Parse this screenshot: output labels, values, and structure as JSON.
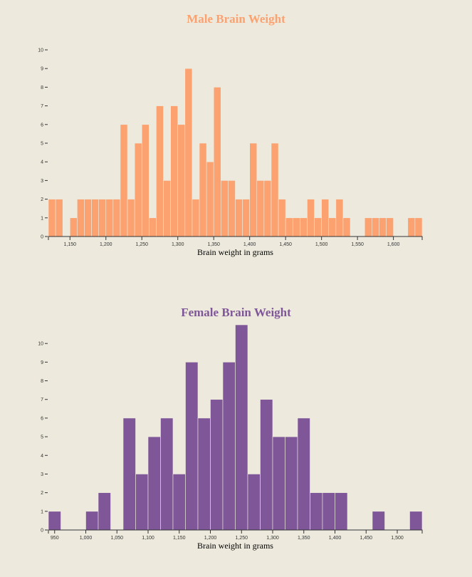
{
  "colors": {
    "background": "#edeadd",
    "male": "#fca170",
    "female": "#7f5799"
  },
  "chart_data": [
    {
      "type": "bar",
      "title": "Male Brain Weight",
      "xlabel": "Brain weight in grams",
      "ylabel": "",
      "color": "#fca170",
      "bin_width": 10,
      "x_domain": [
        1120,
        1640
      ],
      "ylim": [
        0,
        10
      ],
      "y_ticks": [
        0,
        1,
        2,
        3,
        4,
        5,
        6,
        7,
        8,
        9,
        10
      ],
      "x_ticks": [
        1150,
        1200,
        1250,
        1300,
        1350,
        1400,
        1450,
        1500,
        1550,
        1600
      ],
      "x_tick_labels": [
        "1,150",
        "1,200",
        "1,250",
        "1,300",
        "1,350",
        "1,400",
        "1,450",
        "1,500",
        "1,550",
        "1,600"
      ],
      "bins": [
        {
          "x0": 1120,
          "value": 2
        },
        {
          "x0": 1130,
          "value": 2
        },
        {
          "x0": 1140,
          "value": 0
        },
        {
          "x0": 1150,
          "value": 1
        },
        {
          "x0": 1160,
          "value": 2
        },
        {
          "x0": 1170,
          "value": 2
        },
        {
          "x0": 1180,
          "value": 2
        },
        {
          "x0": 1190,
          "value": 2
        },
        {
          "x0": 1200,
          "value": 2
        },
        {
          "x0": 1210,
          "value": 2
        },
        {
          "x0": 1220,
          "value": 6
        },
        {
          "x0": 1230,
          "value": 2
        },
        {
          "x0": 1240,
          "value": 5
        },
        {
          "x0": 1250,
          "value": 6
        },
        {
          "x0": 1260,
          "value": 1
        },
        {
          "x0": 1270,
          "value": 7
        },
        {
          "x0": 1280,
          "value": 3
        },
        {
          "x0": 1290,
          "value": 7
        },
        {
          "x0": 1300,
          "value": 6
        },
        {
          "x0": 1310,
          "value": 9
        },
        {
          "x0": 1320,
          "value": 2
        },
        {
          "x0": 1330,
          "value": 5
        },
        {
          "x0": 1340,
          "value": 4
        },
        {
          "x0": 1350,
          "value": 8
        },
        {
          "x0": 1360,
          "value": 3
        },
        {
          "x0": 1370,
          "value": 3
        },
        {
          "x0": 1380,
          "value": 2
        },
        {
          "x0": 1390,
          "value": 2
        },
        {
          "x0": 1400,
          "value": 5
        },
        {
          "x0": 1410,
          "value": 3
        },
        {
          "x0": 1420,
          "value": 3
        },
        {
          "x0": 1430,
          "value": 5
        },
        {
          "x0": 1440,
          "value": 2
        },
        {
          "x0": 1450,
          "value": 1
        },
        {
          "x0": 1460,
          "value": 1
        },
        {
          "x0": 1470,
          "value": 1
        },
        {
          "x0": 1480,
          "value": 2
        },
        {
          "x0": 1490,
          "value": 1
        },
        {
          "x0": 1500,
          "value": 2
        },
        {
          "x0": 1510,
          "value": 1
        },
        {
          "x0": 1520,
          "value": 2
        },
        {
          "x0": 1530,
          "value": 1
        },
        {
          "x0": 1540,
          "value": 0
        },
        {
          "x0": 1550,
          "value": 0
        },
        {
          "x0": 1560,
          "value": 1
        },
        {
          "x0": 1570,
          "value": 1
        },
        {
          "x0": 1580,
          "value": 1
        },
        {
          "x0": 1590,
          "value": 1
        },
        {
          "x0": 1600,
          "value": 0
        },
        {
          "x0": 1610,
          "value": 0
        },
        {
          "x0": 1620,
          "value": 1
        },
        {
          "x0": 1630,
          "value": 1
        }
      ]
    },
    {
      "type": "bar",
      "title": "Female Brain Weight",
      "xlabel": "Brain weight in grams",
      "ylabel": "",
      "color": "#7f5799",
      "bin_width": 20,
      "x_domain": [
        940,
        1540
      ],
      "ylim": [
        0,
        11
      ],
      "y_ticks": [
        0,
        1,
        2,
        3,
        4,
        5,
        6,
        7,
        8,
        9,
        10
      ],
      "x_ticks": [
        950,
        1000,
        1050,
        1100,
        1150,
        1200,
        1250,
        1300,
        1350,
        1400,
        1450,
        1500
      ],
      "x_tick_labels": [
        "950",
        "1,000",
        "1,050",
        "1,100",
        "1,150",
        "1,200",
        "1,250",
        "1,300",
        "1,350",
        "1,400",
        "1,450",
        "1,500"
      ],
      "bins": [
        {
          "x0": 940,
          "value": 1
        },
        {
          "x0": 960,
          "value": 0
        },
        {
          "x0": 980,
          "value": 0
        },
        {
          "x0": 1000,
          "value": 1
        },
        {
          "x0": 1020,
          "value": 2
        },
        {
          "x0": 1040,
          "value": 0
        },
        {
          "x0": 1060,
          "value": 6
        },
        {
          "x0": 1080,
          "value": 3
        },
        {
          "x0": 1100,
          "value": 5
        },
        {
          "x0": 1120,
          "value": 6
        },
        {
          "x0": 1140,
          "value": 3
        },
        {
          "x0": 1160,
          "value": 9
        },
        {
          "x0": 1180,
          "value": 6
        },
        {
          "x0": 1200,
          "value": 7
        },
        {
          "x0": 1220,
          "value": 9
        },
        {
          "x0": 1240,
          "value": 11
        },
        {
          "x0": 1260,
          "value": 3
        },
        {
          "x0": 1280,
          "value": 7
        },
        {
          "x0": 1300,
          "value": 5
        },
        {
          "x0": 1320,
          "value": 5
        },
        {
          "x0": 1340,
          "value": 6
        },
        {
          "x0": 1360,
          "value": 2
        },
        {
          "x0": 1380,
          "value": 2
        },
        {
          "x0": 1400,
          "value": 2
        },
        {
          "x0": 1420,
          "value": 0
        },
        {
          "x0": 1440,
          "value": 0
        },
        {
          "x0": 1460,
          "value": 1
        },
        {
          "x0": 1480,
          "value": 0
        },
        {
          "x0": 1500,
          "value": 0
        },
        {
          "x0": 1520,
          "value": 1
        }
      ]
    }
  ]
}
